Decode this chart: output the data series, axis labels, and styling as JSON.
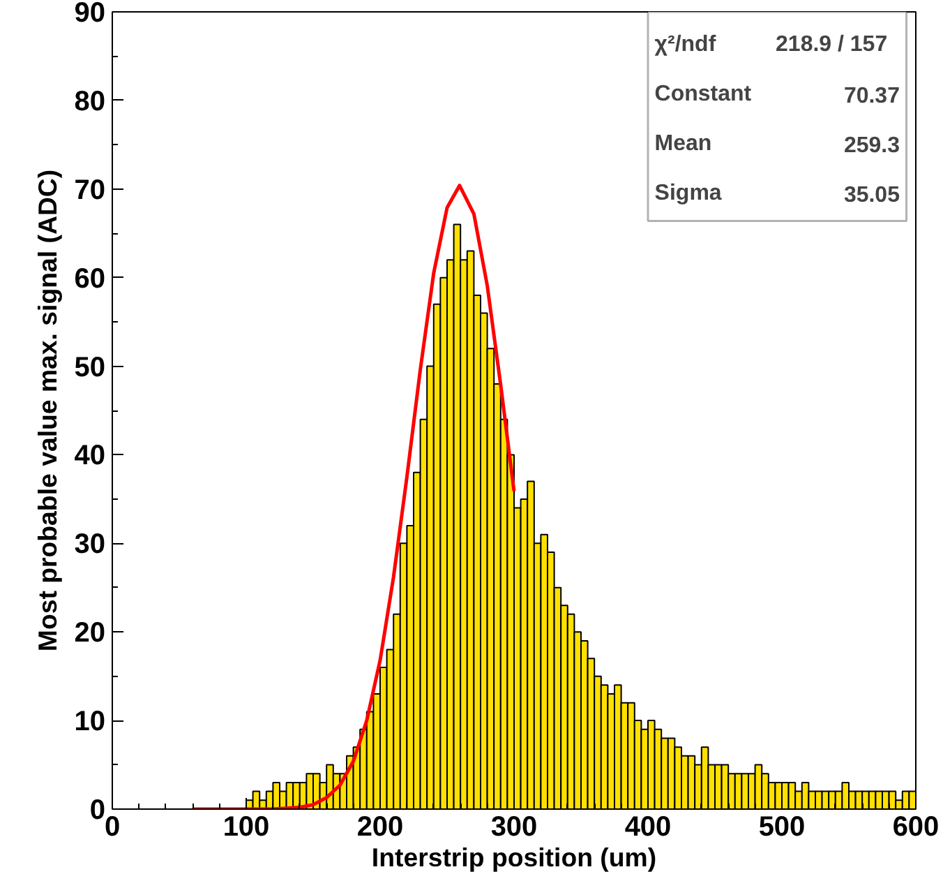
{
  "chart_data": {
    "type": "histogram",
    "xlabel": "Interstrip position (um)",
    "ylabel": "Most probable value max. signal (ADC)",
    "bins": [
      100,
      105,
      110,
      115,
      120,
      125,
      130,
      135,
      140,
      145,
      150,
      155,
      160,
      165,
      170,
      175,
      180,
      185,
      190,
      195,
      200,
      205,
      210,
      215,
      220,
      225,
      230,
      235,
      240,
      245,
      250,
      255,
      260,
      265,
      270,
      275,
      280,
      285,
      290,
      295,
      300,
      305,
      310,
      315,
      320,
      325,
      330,
      335,
      340,
      345,
      350,
      355,
      360,
      365,
      370,
      375,
      380,
      385,
      390,
      395,
      400,
      405,
      410,
      415,
      420,
      425,
      430,
      435,
      440,
      445,
      450,
      455,
      460,
      465,
      470,
      475,
      480,
      485,
      490,
      495,
      500,
      505,
      510,
      515,
      520,
      525,
      530,
      535,
      540,
      545,
      550,
      555,
      560,
      565,
      570,
      575,
      580,
      585,
      590,
      595,
      600
    ],
    "series": [
      {
        "color": "#ffe000",
        "values": [
          1,
          2,
          1,
          2,
          3,
          2,
          3,
          3,
          3,
          4,
          4,
          3,
          5,
          4,
          4,
          6,
          7,
          9,
          11,
          13,
          16,
          18,
          22,
          30,
          32,
          38,
          44,
          50,
          57,
          60,
          62,
          66,
          62,
          63,
          58,
          56,
          52,
          48,
          44,
          40,
          34,
          35,
          37,
          30,
          31,
          29,
          25,
          23,
          22,
          20,
          19,
          17,
          15,
          14,
          13,
          14,
          12,
          12,
          10,
          9,
          10,
          9,
          8,
          8,
          7,
          6,
          6,
          5,
          7,
          5,
          5,
          5,
          4,
          4,
          4,
          4,
          5,
          4,
          3,
          3,
          3,
          3,
          2,
          3,
          2,
          2,
          2,
          2,
          2,
          3,
          2,
          2,
          2,
          2,
          2,
          2,
          2,
          1,
          2,
          2
        ]
      },
      {
        "type": "line",
        "color": "#ff0000",
        "x": [
          60,
          80,
          100,
          120,
          140,
          150,
          160,
          170,
          180,
          190,
          200,
          210,
          220,
          230,
          240,
          250,
          259.3,
          270,
          280,
          290,
          300
        ],
        "values": [
          0,
          0,
          0,
          0,
          0.2,
          0.5,
          1.3,
          2.7,
          5.4,
          10,
          16.8,
          26.2,
          37.5,
          49.6,
          60.5,
          67.9,
          70.4,
          67.2,
          59.1,
          47.9,
          35.9
        ]
      }
    ],
    "xlim": [
      0,
      600
    ],
    "xticks": [
      0,
      100,
      200,
      300,
      400,
      500,
      600
    ],
    "ylim": [
      0,
      90
    ],
    "yticks": [
      0,
      10,
      20,
      30,
      40,
      50,
      60,
      70,
      80,
      90
    ],
    "grid": false,
    "annotations": [
      "χ²/ndf",
      "218.9  /  157",
      "Constant",
      "70.37",
      "Mean",
      "259.3",
      "Sigma",
      "35.05"
    ]
  }
}
